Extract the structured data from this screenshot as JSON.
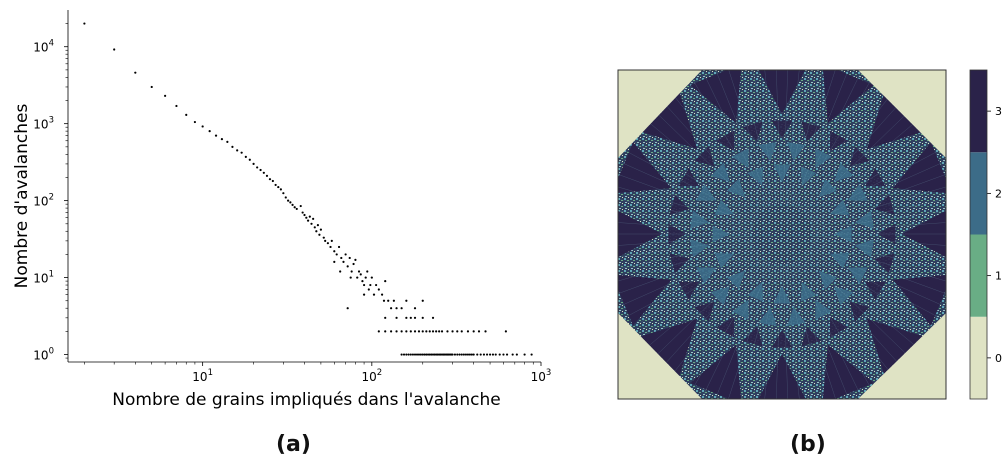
{
  "captions": {
    "a": "(a)",
    "b": "(b)"
  },
  "chart_data": [
    {
      "type": "scatter",
      "panel": "(a)",
      "xlabel": "Nombre de grains impliqués dans l'avalanche",
      "ylabel": "Nombre d'avalanches",
      "xscale": "log",
      "yscale": "log",
      "xlim": [
        1.6,
        1000
      ],
      "ylim": [
        0.8,
        30000
      ],
      "xticks": [
        {
          "value": 10,
          "base": "10",
          "exp": "1"
        },
        {
          "value": 100,
          "base": "10",
          "exp": "2"
        },
        {
          "value": 1000,
          "base": "10",
          "exp": "3"
        }
      ],
      "yticks": [
        {
          "value": 1,
          "base": "10",
          "exp": "0"
        },
        {
          "value": 10,
          "base": "10",
          "exp": "1"
        },
        {
          "value": 100,
          "base": "10",
          "exp": "2"
        },
        {
          "value": 1000,
          "base": "10",
          "exp": "3"
        },
        {
          "value": 10000,
          "base": "10",
          "exp": "4"
        }
      ],
      "marker_color": "#000000",
      "points": [
        [
          2,
          20000
        ],
        [
          3,
          9200
        ],
        [
          4,
          4600
        ],
        [
          5,
          3000
        ],
        [
          6,
          2300
        ],
        [
          7,
          1700
        ],
        [
          8,
          1300
        ],
        [
          9,
          1050
        ],
        [
          10,
          920
        ],
        [
          11,
          800
        ],
        [
          12,
          700
        ],
        [
          13,
          630
        ],
        [
          14,
          580
        ],
        [
          15,
          500
        ],
        [
          16,
          450
        ],
        [
          17,
          420
        ],
        [
          18,
          370
        ],
        [
          19,
          340
        ],
        [
          20,
          300
        ],
        [
          21,
          270
        ],
        [
          22,
          250
        ],
        [
          23,
          230
        ],
        [
          24,
          210
        ],
        [
          25,
          190
        ],
        [
          26,
          180
        ],
        [
          27,
          160
        ],
        [
          28,
          150
        ],
        [
          29,
          140
        ],
        [
          30,
          125
        ],
        [
          31,
          110
        ],
        [
          32,
          100
        ],
        [
          33,
          95
        ],
        [
          34,
          88
        ],
        [
          35,
          82
        ],
        [
          36,
          78
        ],
        [
          38,
          85
        ],
        [
          39,
          70
        ],
        [
          40,
          65
        ],
        [
          41,
          60
        ],
        [
          42,
          55
        ],
        [
          43,
          62
        ],
        [
          44,
          50
        ],
        [
          45,
          58
        ],
        [
          46,
          45
        ],
        [
          47,
          40
        ],
        [
          48,
          48
        ],
        [
          49,
          36
        ],
        [
          50,
          42
        ],
        [
          52,
          33
        ],
        [
          53,
          30
        ],
        [
          55,
          28
        ],
        [
          57,
          25
        ],
        [
          58,
          30
        ],
        [
          60,
          22
        ],
        [
          62,
          20
        ],
        [
          64,
          25
        ],
        [
          66,
          18
        ],
        [
          68,
          16
        ],
        [
          70,
          20
        ],
        [
          72,
          14
        ],
        [
          74,
          18
        ],
        [
          76,
          12
        ],
        [
          78,
          15
        ],
        [
          80,
          17
        ],
        [
          82,
          10
        ],
        [
          84,
          12
        ],
        [
          86,
          11
        ],
        [
          88,
          9
        ],
        [
          90,
          8
        ],
        [
          92,
          10
        ],
        [
          94,
          12
        ],
        [
          96,
          7
        ],
        [
          98,
          8
        ],
        [
          100,
          10
        ],
        [
          103,
          6
        ],
        [
          106,
          8
        ],
        [
          110,
          7
        ],
        [
          115,
          6
        ],
        [
          118,
          5
        ],
        [
          120,
          9
        ],
        [
          125,
          5
        ],
        [
          130,
          4
        ],
        [
          135,
          5
        ],
        [
          140,
          4
        ],
        [
          150,
          4
        ],
        [
          160,
          5
        ],
        [
          170,
          3
        ],
        [
          180,
          4
        ],
        [
          200,
          3
        ],
        [
          230,
          3
        ],
        [
          72,
          4
        ],
        [
          90,
          6
        ],
        [
          60,
          16
        ],
        [
          75,
          10
        ],
        [
          65,
          12
        ],
        [
          120,
          3
        ],
        [
          140,
          3
        ],
        [
          160,
          3
        ],
        [
          180,
          3
        ],
        [
          200,
          5
        ],
        [
          110,
          2
        ],
        [
          120,
          2
        ],
        [
          130,
          2
        ],
        [
          140,
          2
        ],
        [
          150,
          2
        ],
        [
          160,
          2
        ],
        [
          170,
          2
        ],
        [
          180,
          2
        ],
        [
          190,
          2
        ],
        [
          200,
          2
        ],
        [
          210,
          2
        ],
        [
          220,
          2
        ],
        [
          230,
          2
        ],
        [
          240,
          2
        ],
        [
          250,
          2
        ],
        [
          260,
          2
        ],
        [
          280,
          2
        ],
        [
          300,
          2
        ],
        [
          320,
          2
        ],
        [
          340,
          2
        ],
        [
          370,
          2
        ],
        [
          400,
          2
        ],
        [
          430,
          2
        ],
        [
          470,
          2
        ],
        [
          620,
          2
        ],
        [
          150,
          1
        ],
        [
          155,
          1
        ],
        [
          160,
          1
        ],
        [
          165,
          1
        ],
        [
          170,
          1
        ],
        [
          175,
          1
        ],
        [
          180,
          1
        ],
        [
          185,
          1
        ],
        [
          190,
          1
        ],
        [
          195,
          1
        ],
        [
          200,
          1
        ],
        [
          205,
          1
        ],
        [
          210,
          1
        ],
        [
          215,
          1
        ],
        [
          220,
          1
        ],
        [
          225,
          1
        ],
        [
          230,
          1
        ],
        [
          235,
          1
        ],
        [
          240,
          1
        ],
        [
          245,
          1
        ],
        [
          250,
          1
        ],
        [
          255,
          1
        ],
        [
          260,
          1
        ],
        [
          265,
          1
        ],
        [
          270,
          1
        ],
        [
          275,
          1
        ],
        [
          280,
          1
        ],
        [
          285,
          1
        ],
        [
          290,
          1
        ],
        [
          295,
          1
        ],
        [
          300,
          1
        ],
        [
          310,
          1
        ],
        [
          320,
          1
        ],
        [
          330,
          1
        ],
        [
          340,
          1
        ],
        [
          350,
          1
        ],
        [
          360,
          1
        ],
        [
          370,
          1
        ],
        [
          380,
          1
        ],
        [
          390,
          1
        ],
        [
          400,
          1
        ],
        [
          420,
          1
        ],
        [
          440,
          1
        ],
        [
          460,
          1
        ],
        [
          480,
          1
        ],
        [
          500,
          1
        ],
        [
          520,
          1
        ],
        [
          540,
          1
        ],
        [
          570,
          1
        ],
        [
          600,
          1
        ],
        [
          630,
          1
        ],
        [
          680,
          1
        ],
        [
          720,
          1
        ],
        [
          800,
          1
        ],
        [
          880,
          1
        ]
      ]
    },
    {
      "type": "heatmap",
      "panel": "(b)",
      "colorbar": {
        "ticks": [
          "0",
          "1",
          "2",
          "3"
        ],
        "colors": [
          "#dfe3c4",
          "#69ad85",
          "#3c6c88",
          "#2a2249"
        ]
      }
    }
  ]
}
